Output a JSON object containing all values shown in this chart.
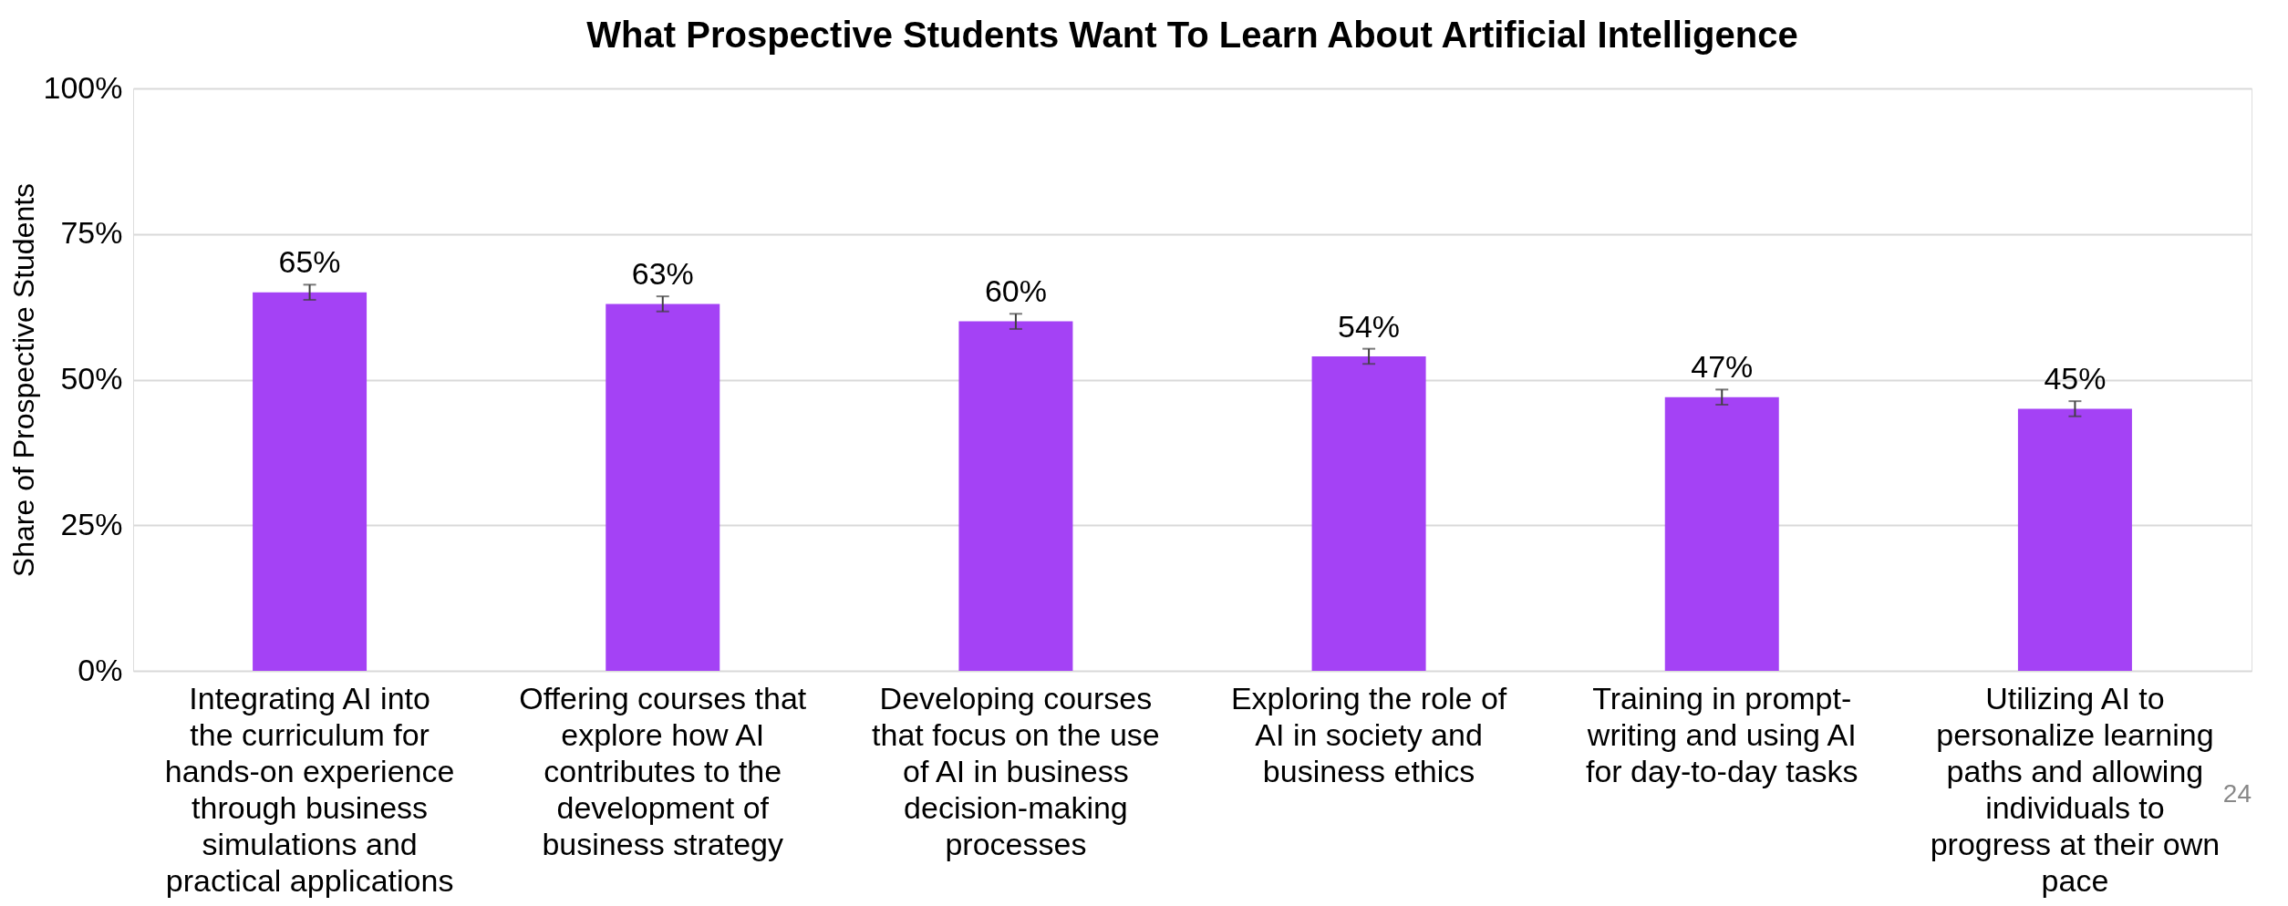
{
  "chart_data": {
    "type": "bar",
    "title": "What Prospective Students Want To Learn About Artificial Intelligence",
    "ylabel": "Share of Prospective Students",
    "categories": [
      "Integrating AI into the curriculum for hands-on experience through business simulations and practical applications",
      "Offering courses that explore how AI contributes to the development of business strategy",
      "Developing courses that focus on the use of AI in business decision-making processes",
      "Exploring the role of AI in society and business ethics",
      "Training in prompt-writing and using AI for day-to-day tasks",
      "Utilizing AI to personalize learning paths and allowing individuals to progress at their own pace"
    ],
    "values": [
      65,
      63,
      60,
      54,
      47,
      45
    ],
    "errors": [
      1.3,
      1.3,
      1.3,
      1.3,
      1.3,
      1.3
    ],
    "color": "#a442f5",
    "ylim": [
      0,
      100
    ],
    "yticks": [
      {
        "value": 0,
        "label": "0%"
      },
      {
        "value": 25,
        "label": "25%"
      },
      {
        "value": 50,
        "label": "50%"
      },
      {
        "value": 75,
        "label": "75%"
      },
      {
        "value": 100,
        "label": "100%"
      }
    ],
    "grid": "y",
    "value_labels": [
      "65%",
      "63%",
      "60%",
      "54%",
      "47%",
      "45%"
    ],
    "annotations": [
      "24"
    ]
  }
}
